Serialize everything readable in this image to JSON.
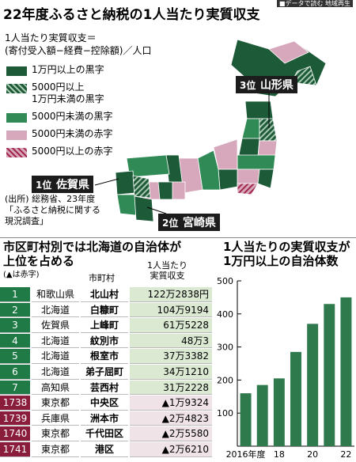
{
  "header": {
    "badge": "■データで読む 地域再生",
    "title": "22年度ふるさと納税の1人当たり実質収支"
  },
  "map": {
    "formula": [
      "1人当たり実質収支＝",
      "(寄付受入額−経費−控除額)／人口"
    ],
    "legend": [
      {
        "lines": [
          "1万円以上の黒字"
        ],
        "color": "#1d5a38"
      },
      {
        "lines": [
          "5000円以上",
          "1万円未満の黒字"
        ],
        "color": "#1d5a38",
        "hatch": true
      },
      {
        "lines": [
          "5000円未満の黒字"
        ],
        "color": "#2f8a55"
      },
      {
        "lines": [
          "5000円未満の赤字"
        ],
        "color": "#d7a8bb"
      },
      {
        "lines": [
          "5000円以上の赤字"
        ],
        "color": "#d7a8bb",
        "hatch": true
      }
    ],
    "callouts": [
      {
        "rank": "3位",
        "name": "山形県"
      },
      {
        "rank": "1位",
        "name": "佐賀県"
      },
      {
        "rank": "2位",
        "name": "宮崎県"
      }
    ],
    "source": [
      "(出所) 総務省、23年度",
      "「ふるさと納税に関する",
      "現況調査」"
    ]
  },
  "table": {
    "title": [
      "市区町村別では北海道の自治体が",
      "上位を占める"
    ],
    "note": "(▲は赤字)",
    "columns": [
      "市町村",
      [
        "1人当たり",
        "実質収支"
      ]
    ],
    "rows": [
      [
        "1",
        "和歌山県",
        "北山村",
        "122万2838円"
      ],
      [
        "2",
        "北海道",
        "白糠町",
        "104万9194"
      ],
      [
        "3",
        "佐賀県",
        "上峰町",
        "61万5228"
      ],
      [
        "4",
        "北海道",
        "紋別市",
        "48万3"
      ],
      [
        "5",
        "北海道",
        "根室市",
        "37万3382"
      ],
      [
        "6",
        "北海道",
        "弟子屈町",
        "34万1210"
      ],
      [
        "7",
        "高知県",
        "芸西村",
        "31万2228"
      ],
      [
        "1738",
        "東京都",
        "中央区",
        "▲1万9324"
      ],
      [
        "1739",
        "兵庫県",
        "洲本市",
        "▲2万4823"
      ],
      [
        "1740",
        "東京都",
        "千代田区",
        "▲2万5580"
      ],
      [
        "1741",
        "東京都",
        "港区",
        "▲2万6210"
      ]
    ]
  },
  "chart_data": {
    "type": "bar",
    "title": [
      "1人当たりの実質収支が",
      "1万円以上の自治体数"
    ],
    "categories": [
      "2016年度",
      null,
      "18",
      null,
      "20",
      null,
      "22"
    ],
    "values": [
      160,
      185,
      205,
      285,
      370,
      430,
      450
    ],
    "color": "#2f7a4d",
    "ylim": [
      0,
      500
    ],
    "yticks": [
      100,
      200,
      300,
      400,
      500
    ]
  }
}
